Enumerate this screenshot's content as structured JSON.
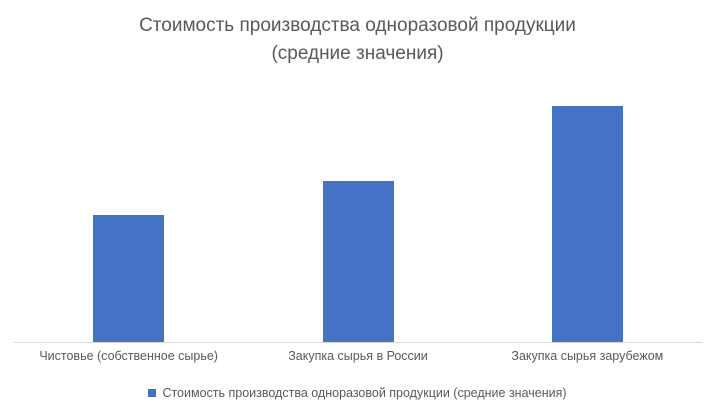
{
  "chart_data": {
    "type": "bar",
    "title": "Стоимость производства одноразовой продукции (средние значения)",
    "title_lines": [
      "Стоимость производства одноразовой продукции",
      "(средние значения)"
    ],
    "categories": [
      "Чистовье (собственное сырье)",
      "Закупка сырья в России",
      "Закупка сырья зарубежом"
    ],
    "series": [
      {
        "name": "Стоимость производства одноразовой продукции (средние значения)",
        "values": [
          127,
          161,
          236
        ]
      }
    ],
    "values_note": "value axis is not shown/labeled in the chart; values are relative magnitudes estimated from bar heights",
    "ylim": [
      0,
      236
    ],
    "grid": false,
    "value_axis_visible": false,
    "legend": "Стоимость производства одноразовой продукции (средние значения)",
    "legend_position": "bottom",
    "colors": {
      "bar": "#4472C4",
      "text": "#595959",
      "axis_line": "#D9D9D9"
    }
  }
}
